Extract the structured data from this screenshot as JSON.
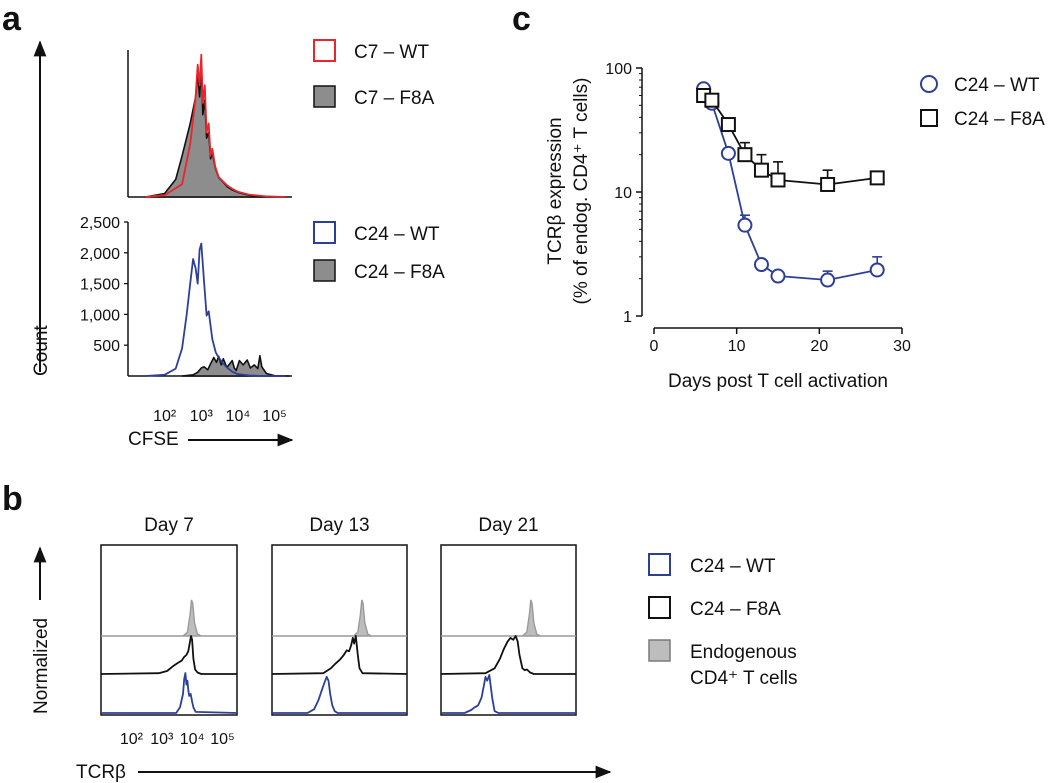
{
  "figure": {
    "panel_a": {
      "letter": "a",
      "y_axis_label": "Count",
      "x_axis_label": "CFSE",
      "top_legend": [
        "C7 – WT",
        "C7 – F8A"
      ],
      "bottom_legend": [
        "C24 – WT",
        "C24 – F8A"
      ]
    },
    "panel_b": {
      "letter": "b",
      "y_axis_label": "Normalized",
      "x_axis_label": "TCRβ",
      "legend": [
        "C24 – WT",
        "C24 – F8A",
        "Endogenous",
        "CD4⁺ T cells"
      ]
    },
    "panel_c": {
      "letter": "c",
      "y_label_line1": "TCRβ expression",
      "y_label_line2": "(% of endog. CD4⁺ T cells)",
      "x_label": "Days post T cell activation",
      "legend": [
        "C24 – WT",
        "C24 – F8A"
      ]
    }
  },
  "chart_data": [
    {
      "id": "a-top",
      "type": "area",
      "title": "",
      "xscale": "log10",
      "xlim": [
        10,
        300000
      ],
      "xticks": [
        100,
        1000,
        10000,
        100000
      ],
      "xtick_labels": [
        "10²",
        "10³",
        "10⁴",
        "10⁵"
      ],
      "ylim": [
        0,
        2500
      ],
      "series": [
        {
          "name": "C7 – WT",
          "style": "outline",
          "color": "#e8262b",
          "x": [
            30,
            100,
            300,
            500,
            700,
            800,
            900,
            1000,
            1100,
            1250,
            1400,
            1600,
            1800,
            2000,
            2400,
            3000,
            4000,
            5000,
            7000,
            10000,
            20000,
            60000,
            200000
          ],
          "y": [
            0,
            30,
            220,
            900,
            1700,
            2250,
            1900,
            2420,
            1600,
            1900,
            1100,
            1250,
            700,
            820,
            520,
            340,
            260,
            200,
            140,
            90,
            40,
            10,
            0
          ]
        },
        {
          "name": "C7 – F8A",
          "style": "filled",
          "color": "#111111",
          "x": [
            30,
            100,
            200,
            300,
            500,
            700,
            800,
            900,
            1000,
            1100,
            1250,
            1400,
            1600,
            1800,
            2000,
            2400,
            3000,
            4000,
            5000,
            7000,
            10000,
            20000,
            60000,
            200000
          ],
          "y": [
            0,
            60,
            300,
            700,
            1250,
            1700,
            2100,
            1700,
            2250,
            1400,
            1650,
            1000,
            1100,
            650,
            760,
            500,
            330,
            250,
            180,
            120,
            80,
            30,
            8,
            0
          ]
        }
      ]
    },
    {
      "id": "a-bottom",
      "type": "area",
      "title": "",
      "xscale": "log10",
      "xlim": [
        10,
        300000
      ],
      "xticks": [
        100,
        1000,
        10000,
        100000
      ],
      "xtick_labels": [
        "10²",
        "10³",
        "10⁴",
        "10⁵"
      ],
      "ylim": [
        0,
        2500
      ],
      "yticks": [
        500,
        1000,
        1500,
        2000,
        2500
      ],
      "ytick_labels": [
        "500",
        "1,000",
        "1,500",
        "2,000",
        "2,500"
      ],
      "series": [
        {
          "name": "C24 – WT",
          "style": "outline",
          "color": "#2e3f98",
          "x": [
            30,
            100,
            200,
            300,
            400,
            500,
            600,
            700,
            800,
            900,
            1000,
            1200,
            1400,
            1600,
            2000,
            2500,
            3000,
            4000,
            5000,
            7000,
            10000,
            20000,
            50000,
            200000
          ],
          "y": [
            0,
            20,
            120,
            450,
            1000,
            1500,
            1900,
            1750,
            1500,
            2050,
            2150,
            1500,
            980,
            1050,
            600,
            380,
            300,
            200,
            140,
            70,
            30,
            10,
            0,
            0
          ]
        },
        {
          "name": "C24 – F8A",
          "style": "filled",
          "color": "#111111",
          "x": [
            300,
            600,
            800,
            1000,
            1200,
            1500,
            1800,
            2200,
            2600,
            3000,
            3500,
            4000,
            5000,
            6000,
            7000,
            8000,
            9000,
            11000,
            14000,
            18000,
            22000,
            28000,
            35000,
            40000,
            45000,
            60000,
            100000,
            250000
          ],
          "y": [
            0,
            20,
            60,
            130,
            150,
            100,
            200,
            300,
            220,
            320,
            180,
            280,
            140,
            200,
            250,
            130,
            90,
            250,
            180,
            260,
            130,
            180,
            120,
            330,
            150,
            40,
            5,
            0
          ]
        }
      ]
    },
    {
      "id": "b-day7",
      "type": "area",
      "title": "Day 7",
      "xscale": "log10",
      "xlim": [
        10,
        300000
      ],
      "xticks": [
        100,
        1000,
        10000,
        100000
      ],
      "xtick_labels": [
        "10²",
        "10³",
        "10⁴",
        "10⁵"
      ],
      "series": [
        {
          "name": "Endogenous CD4⁺ T cells",
          "style": "filled",
          "color": "#9a9a9a",
          "offset": 2,
          "x": [
            10,
            5000,
            7000,
            8500,
            9500,
            10500,
            12000,
            15000,
            20000,
            300000
          ],
          "y": [
            0,
            0,
            0.1,
            0.55,
            0.95,
            0.85,
            0.35,
            0.05,
            0,
            0
          ]
        },
        {
          "name": "C24 – F8A",
          "style": "outline",
          "color": "#111111",
          "offset": 1,
          "x": [
            10,
            800,
            1500,
            2500,
            3500,
            4500,
            5500,
            6500,
            7500,
            8500,
            9200,
            10000,
            11000,
            12500,
            15000,
            20000,
            300000
          ],
          "y": [
            0,
            0.02,
            0.08,
            0.22,
            0.3,
            0.35,
            0.45,
            0.5,
            0.6,
            0.85,
            1.0,
            0.9,
            0.4,
            0.12,
            0.04,
            0,
            0
          ]
        },
        {
          "name": "C24 – WT",
          "style": "outline",
          "color": "#2e3f98",
          "offset": 0,
          "x": [
            10,
            3000,
            4000,
            5000,
            5500,
            6000,
            6500,
            7000,
            7500,
            8000,
            9000,
            10000,
            11000,
            13000,
            300000
          ],
          "y": [
            0,
            0,
            0.15,
            0.5,
            0.9,
            1.05,
            0.75,
            0.85,
            0.6,
            0.45,
            0.5,
            0.3,
            0.15,
            0.03,
            0
          ]
        }
      ]
    },
    {
      "id": "b-day13",
      "type": "area",
      "title": "Day 13",
      "xscale": "log10",
      "xlim": [
        10,
        300000
      ],
      "xticks": [
        100,
        1000,
        10000,
        100000
      ],
      "xtick_labels": [
        "10²",
        "10³",
        "10⁴",
        "10⁵"
      ],
      "series": [
        {
          "name": "Endogenous CD4⁺ T cells",
          "style": "filled",
          "color": "#9a9a9a",
          "offset": 2,
          "x": [
            10,
            5000,
            7000,
            8500,
            9500,
            10500,
            12000,
            15000,
            20000,
            300000
          ],
          "y": [
            0,
            0,
            0.1,
            0.55,
            0.95,
            0.85,
            0.35,
            0.05,
            0,
            0
          ]
        },
        {
          "name": "C24 – F8A",
          "style": "outline",
          "color": "#111111",
          "offset": 1,
          "x": [
            10,
            500,
            900,
            1300,
            1800,
            2400,
            3000,
            3600,
            4200,
            4800,
            5300,
            6000,
            7000,
            8000,
            10000,
            300000
          ],
          "y": [
            0,
            0.02,
            0.15,
            0.28,
            0.38,
            0.5,
            0.62,
            0.6,
            0.75,
            0.95,
            0.8,
            1.0,
            0.5,
            0.15,
            0.02,
            0
          ]
        },
        {
          "name": "C24 – WT",
          "style": "outline",
          "color": "#2e3f98",
          "offset": 0,
          "x": [
            10,
            150,
            250,
            350,
            450,
            550,
            650,
            750,
            850,
            1000,
            1200,
            1500,
            300000
          ],
          "y": [
            0,
            0,
            0.1,
            0.35,
            0.6,
            0.8,
            0.95,
            0.85,
            0.5,
            0.2,
            0.05,
            0,
            0
          ]
        }
      ]
    },
    {
      "id": "b-day21",
      "type": "area",
      "title": "Day 21",
      "xscale": "log10",
      "xlim": [
        10,
        300000
      ],
      "xticks": [
        100,
        1000,
        10000,
        100000
      ],
      "xtick_labels": [
        "10²",
        "10³",
        "10⁴",
        "10⁵"
      ],
      "series": [
        {
          "name": "Endogenous CD4⁺ T cells",
          "style": "filled",
          "color": "#9a9a9a",
          "offset": 2,
          "x": [
            10,
            5000,
            7000,
            8500,
            9500,
            10500,
            12000,
            15000,
            20000,
            300000
          ],
          "y": [
            0,
            0,
            0.1,
            0.55,
            0.95,
            0.85,
            0.35,
            0.05,
            0,
            0
          ]
        },
        {
          "name": "C24 – F8A",
          "style": "outline",
          "color": "#111111",
          "offset": 1,
          "x": [
            10,
            300,
            600,
            900,
            1200,
            1600,
            2000,
            2500,
            3000,
            3500,
            4000,
            5000,
            6000,
            7000,
            9000,
            12000,
            300000
          ],
          "y": [
            0,
            0.02,
            0.15,
            0.4,
            0.65,
            0.85,
            0.95,
            0.9,
            1.0,
            0.85,
            0.5,
            0.15,
            0.1,
            0.12,
            0.04,
            0,
            0
          ]
        },
        {
          "name": "C24 – WT",
          "style": "outline",
          "color": "#2e3f98",
          "offset": 0,
          "x": [
            10,
            60,
            100,
            130,
            170,
            220,
            260,
            300,
            340,
            400,
            500,
            600,
            800,
            300000
          ],
          "y": [
            0,
            0,
            0.08,
            0.15,
            0.2,
            0.4,
            0.7,
            0.95,
            0.85,
            1.0,
            0.4,
            0.05,
            0,
            0
          ]
        }
      ]
    },
    {
      "id": "c",
      "type": "scatter",
      "title": "",
      "xlabel": "Days post T cell activation",
      "ylabel": "TCRβ expression (% of endog. CD4⁺ T cells)",
      "xlim": [
        0,
        30
      ],
      "xticks": [
        0,
        10,
        20,
        30
      ],
      "yscale": "log10",
      "ylim": [
        1,
        100
      ],
      "yticks": [
        1,
        10,
        100
      ],
      "series": [
        {
          "name": "C24 – WT",
          "marker": "circle",
          "color": "#2e3f98",
          "x": [
            6,
            7,
            9,
            11,
            13,
            15,
            21,
            27
          ],
          "y": [
            68,
            52,
            20.5,
            5.4,
            2.6,
            2.1,
            1.95,
            2.35
          ],
          "err_upper": [
            72,
            56,
            21.5,
            6.5,
            2.7,
            2.15,
            2.3,
            3.0
          ]
        },
        {
          "name": "C24 – F8A",
          "marker": "square",
          "color": "#111111",
          "x": [
            6,
            7,
            9,
            11,
            13,
            15,
            21,
            27
          ],
          "y": [
            60,
            55,
            35,
            20,
            15,
            12.5,
            11.5,
            13
          ],
          "err_upper": [
            64,
            60,
            38,
            25,
            20,
            17.5,
            15,
            14
          ]
        }
      ]
    }
  ]
}
